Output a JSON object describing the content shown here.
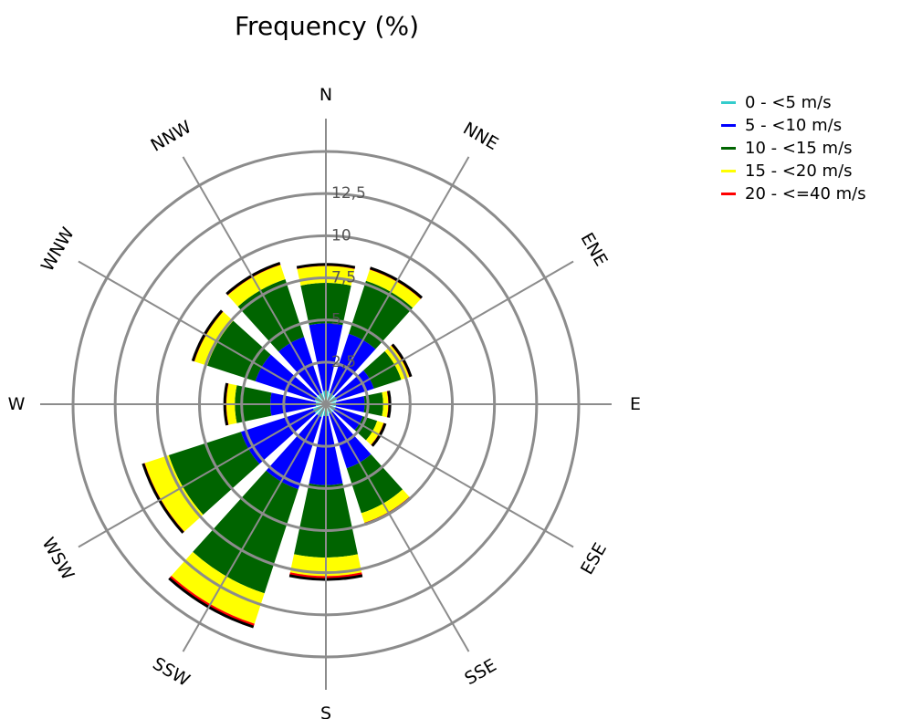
{
  "chart_data": {
    "type": "wind-rose",
    "title": "Frequency (%)",
    "directions": [
      "N",
      "NNE",
      "ENE",
      "E",
      "ESE",
      "SSE",
      "S",
      "SSW",
      "WSW",
      "W",
      "WNW",
      "NNW"
    ],
    "ring_values": [
      2.5,
      5,
      7.5,
      10,
      12.5
    ],
    "ring_labels": [
      "2,5",
      "5",
      "7,5",
      "10",
      "12,5"
    ],
    "rmax": 15,
    "series": [
      {
        "name": "0 - <5 m/s",
        "color": "#33cccc"
      },
      {
        "name": "5 - <10 m/s",
        "color": "#0000ff"
      },
      {
        "name": "10 - <15 m/s",
        "color": "#006400"
      },
      {
        "name": "15 - <20 m/s",
        "color": "#ffff00"
      },
      {
        "name": "20 - <=40 m/s",
        "color": "#ff0000"
      }
    ],
    "cumulative_values": [
      [
        0.8,
        4.8,
        7.2,
        8.2,
        8.3
      ],
      [
        0.7,
        4.4,
        7.7,
        8.4,
        8.5
      ],
      [
        0.7,
        3.0,
        4.7,
        5.2,
        5.3
      ],
      [
        0.6,
        2.3,
        3.4,
        3.7,
        3.8
      ],
      [
        0.6,
        2.3,
        3.2,
        3.6,
        3.7
      ],
      [
        0.6,
        4.0,
        6.8,
        7.4,
        7.5
      ],
      [
        0.7,
        4.8,
        9.1,
        10.2,
        10.4
      ],
      [
        0.8,
        5.3,
        11.8,
        13.7,
        13.9
      ],
      [
        0.8,
        5.3,
        9.8,
        11.3,
        11.4
      ],
      [
        0.6,
        3.3,
        5.4,
        5.9,
        6.0
      ],
      [
        0.7,
        4.4,
        7.4,
        8.2,
        8.3
      ],
      [
        0.7,
        4.2,
        7.8,
        8.7,
        8.8
      ]
    ]
  }
}
